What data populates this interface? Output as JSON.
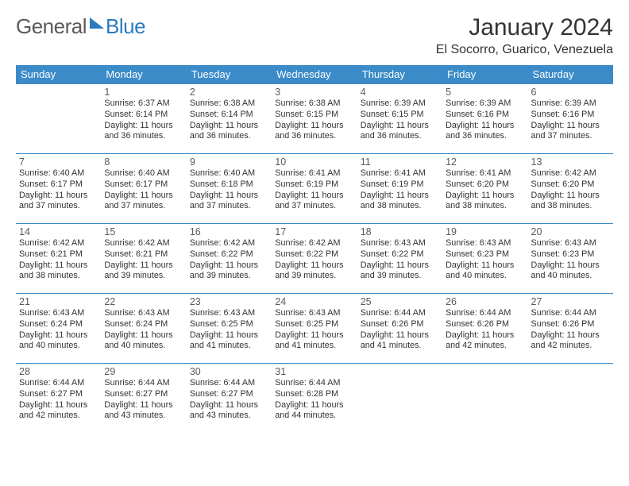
{
  "brand": {
    "part1": "General",
    "part2": "Blue"
  },
  "title": "January 2024",
  "location": "El Socorro, Guarico, Venezuela",
  "colors": {
    "header_bg": "#3b8bc8",
    "header_text": "#ffffff",
    "border": "#3b8bc8",
    "body_text": "#333333",
    "brand_gray": "#5b5b5b",
    "brand_blue": "#2b7bbd",
    "background": "#ffffff"
  },
  "weekdays": [
    "Sunday",
    "Monday",
    "Tuesday",
    "Wednesday",
    "Thursday",
    "Friday",
    "Saturday"
  ],
  "weeks": [
    [
      {
        "empty": true
      },
      {
        "n": "1",
        "sr": "6:37 AM",
        "ss": "6:14 PM",
        "dl": "11 hours and 36 minutes."
      },
      {
        "n": "2",
        "sr": "6:38 AM",
        "ss": "6:14 PM",
        "dl": "11 hours and 36 minutes."
      },
      {
        "n": "3",
        "sr": "6:38 AM",
        "ss": "6:15 PM",
        "dl": "11 hours and 36 minutes."
      },
      {
        "n": "4",
        "sr": "6:39 AM",
        "ss": "6:15 PM",
        "dl": "11 hours and 36 minutes."
      },
      {
        "n": "5",
        "sr": "6:39 AM",
        "ss": "6:16 PM",
        "dl": "11 hours and 36 minutes."
      },
      {
        "n": "6",
        "sr": "6:39 AM",
        "ss": "6:16 PM",
        "dl": "11 hours and 37 minutes."
      }
    ],
    [
      {
        "n": "7",
        "sr": "6:40 AM",
        "ss": "6:17 PM",
        "dl": "11 hours and 37 minutes."
      },
      {
        "n": "8",
        "sr": "6:40 AM",
        "ss": "6:17 PM",
        "dl": "11 hours and 37 minutes."
      },
      {
        "n": "9",
        "sr": "6:40 AM",
        "ss": "6:18 PM",
        "dl": "11 hours and 37 minutes."
      },
      {
        "n": "10",
        "sr": "6:41 AM",
        "ss": "6:19 PM",
        "dl": "11 hours and 37 minutes."
      },
      {
        "n": "11",
        "sr": "6:41 AM",
        "ss": "6:19 PM",
        "dl": "11 hours and 38 minutes."
      },
      {
        "n": "12",
        "sr": "6:41 AM",
        "ss": "6:20 PM",
        "dl": "11 hours and 38 minutes."
      },
      {
        "n": "13",
        "sr": "6:42 AM",
        "ss": "6:20 PM",
        "dl": "11 hours and 38 minutes."
      }
    ],
    [
      {
        "n": "14",
        "sr": "6:42 AM",
        "ss": "6:21 PM",
        "dl": "11 hours and 38 minutes."
      },
      {
        "n": "15",
        "sr": "6:42 AM",
        "ss": "6:21 PM",
        "dl": "11 hours and 39 minutes."
      },
      {
        "n": "16",
        "sr": "6:42 AM",
        "ss": "6:22 PM",
        "dl": "11 hours and 39 minutes."
      },
      {
        "n": "17",
        "sr": "6:42 AM",
        "ss": "6:22 PM",
        "dl": "11 hours and 39 minutes."
      },
      {
        "n": "18",
        "sr": "6:43 AM",
        "ss": "6:22 PM",
        "dl": "11 hours and 39 minutes."
      },
      {
        "n": "19",
        "sr": "6:43 AM",
        "ss": "6:23 PM",
        "dl": "11 hours and 40 minutes."
      },
      {
        "n": "20",
        "sr": "6:43 AM",
        "ss": "6:23 PM",
        "dl": "11 hours and 40 minutes."
      }
    ],
    [
      {
        "n": "21",
        "sr": "6:43 AM",
        "ss": "6:24 PM",
        "dl": "11 hours and 40 minutes."
      },
      {
        "n": "22",
        "sr": "6:43 AM",
        "ss": "6:24 PM",
        "dl": "11 hours and 40 minutes."
      },
      {
        "n": "23",
        "sr": "6:43 AM",
        "ss": "6:25 PM",
        "dl": "11 hours and 41 minutes."
      },
      {
        "n": "24",
        "sr": "6:43 AM",
        "ss": "6:25 PM",
        "dl": "11 hours and 41 minutes."
      },
      {
        "n": "25",
        "sr": "6:44 AM",
        "ss": "6:26 PM",
        "dl": "11 hours and 41 minutes."
      },
      {
        "n": "26",
        "sr": "6:44 AM",
        "ss": "6:26 PM",
        "dl": "11 hours and 42 minutes."
      },
      {
        "n": "27",
        "sr": "6:44 AM",
        "ss": "6:26 PM",
        "dl": "11 hours and 42 minutes."
      }
    ],
    [
      {
        "n": "28",
        "sr": "6:44 AM",
        "ss": "6:27 PM",
        "dl": "11 hours and 42 minutes."
      },
      {
        "n": "29",
        "sr": "6:44 AM",
        "ss": "6:27 PM",
        "dl": "11 hours and 43 minutes."
      },
      {
        "n": "30",
        "sr": "6:44 AM",
        "ss": "6:27 PM",
        "dl": "11 hours and 43 minutes."
      },
      {
        "n": "31",
        "sr": "6:44 AM",
        "ss": "6:28 PM",
        "dl": "11 hours and 44 minutes."
      },
      {
        "empty": true
      },
      {
        "empty": true
      },
      {
        "empty": true
      }
    ]
  ],
  "labels": {
    "sunrise": "Sunrise:",
    "sunset": "Sunset:",
    "daylight": "Daylight:"
  },
  "typography": {
    "title_size": 30,
    "location_size": 16,
    "weekday_size": 13,
    "daynum_size": 12.5,
    "body_size": 10.8
  }
}
